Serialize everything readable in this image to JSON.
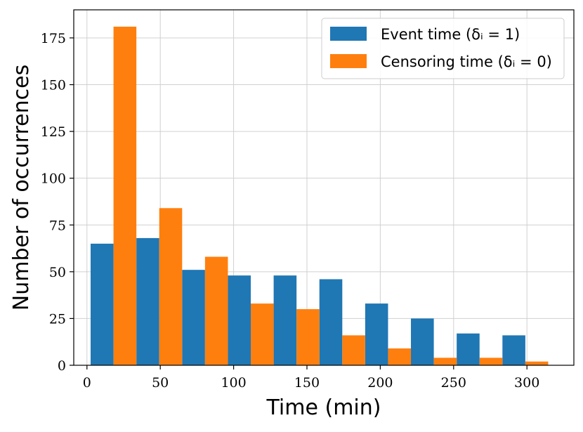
{
  "chart_data": {
    "type": "bar",
    "xlabel": "Time (min)",
    "ylabel": "Number of occurrences",
    "xlim": [
      -9,
      332
    ],
    "ylim": [
      0,
      190
    ],
    "xticks": [
      0,
      50,
      100,
      150,
      200,
      250,
      300
    ],
    "yticks": [
      0,
      25,
      50,
      75,
      100,
      125,
      150,
      175
    ],
    "grid": true,
    "legend_position": "top-right",
    "bin_edges": [
      2.5,
      33.7,
      64.9,
      96.1,
      127.3,
      158.5,
      189.7,
      220.9,
      252.1,
      283.3,
      314.5
    ],
    "series": [
      {
        "name": "Event time (δᵢ = 1)",
        "color": "#1f77b4",
        "values": [
          65,
          68,
          51,
          48,
          48,
          46,
          33,
          25,
          17,
          16
        ]
      },
      {
        "name": "Censoring time (δᵢ = 0)",
        "color": "#ff7f0e",
        "values": [
          181,
          84,
          58,
          33,
          30,
          16,
          9,
          4,
          4,
          2
        ]
      }
    ]
  }
}
